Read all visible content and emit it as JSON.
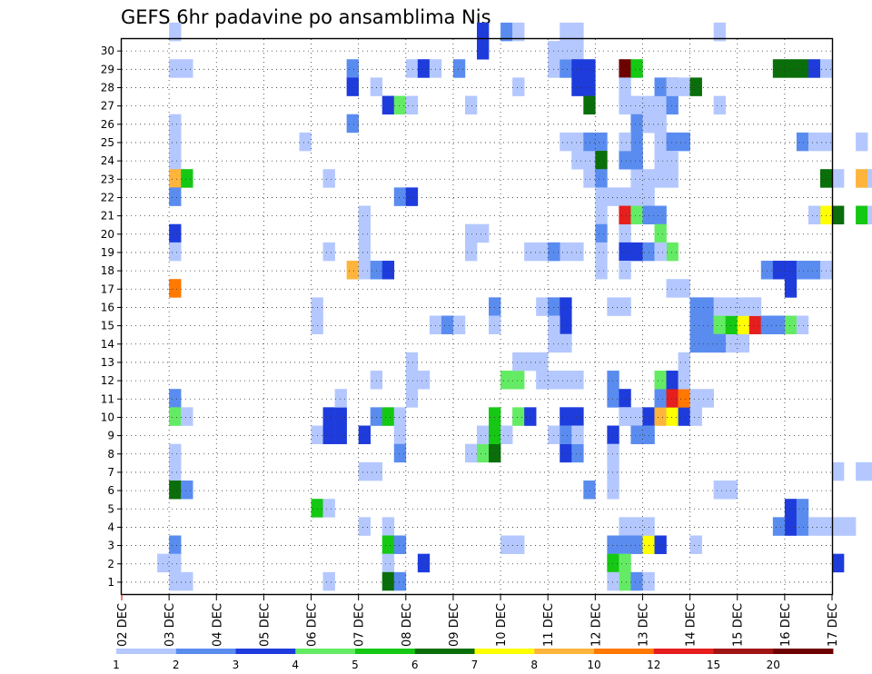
{
  "chart_data": {
    "type": "heatmap",
    "title": "GEFS 6hr padavine po ansamblima Nis",
    "xlabel": "",
    "ylabel": "",
    "members": [
      1,
      2,
      3,
      4,
      5,
      6,
      7,
      8,
      9,
      10,
      11,
      12,
      13,
      14,
      15,
      16,
      17,
      18,
      19,
      20,
      21,
      22,
      23,
      24,
      25,
      26,
      27,
      28,
      29,
      30
    ],
    "x_tick_labels": [
      "02 DEC",
      "03 DEC",
      "04 DEC",
      "05 DEC",
      "06 DEC",
      "07 DEC",
      "08 DEC",
      "09 DEC",
      "10 DEC",
      "11 DEC",
      "12 DEC",
      "13 DEC",
      "14 DEC",
      "15 DEC",
      "16 DEC",
      "17 DEC"
    ],
    "time_step_hours": 6,
    "grid": true,
    "colorbar": {
      "position": "bottom",
      "tick_labels": [
        "1",
        "2",
        "3",
        "4",
        "5",
        "6",
        "7",
        "8",
        "10",
        "12",
        "15",
        "20"
      ],
      "colors": [
        "#b4c8ff",
        "#5a8cf0",
        "#1e3cdc",
        "#64eb64",
        "#14c814",
        "#0a6e0a",
        "#ffff00",
        "#ffb43c",
        "#ff7800",
        "#e61e1e",
        "#a01414",
        "#6e0000"
      ]
    },
    "cells": [
      [
        4,
        30,
        0
      ],
      [
        4,
        28,
        0
      ],
      [
        5,
        28,
        0
      ],
      [
        4,
        25,
        0
      ],
      [
        4,
        24,
        0
      ],
      [
        4,
        23,
        0
      ],
      [
        4,
        22,
        7
      ],
      [
        5,
        22,
        4
      ],
      [
        4,
        21,
        1
      ],
      [
        4,
        19,
        2
      ],
      [
        4,
        18,
        0
      ],
      [
        4,
        16,
        8
      ],
      [
        4,
        10,
        1
      ],
      [
        4,
        9,
        3
      ],
      [
        5,
        9,
        0
      ],
      [
        4,
        7,
        0
      ],
      [
        4,
        6,
        0
      ],
      [
        4,
        5,
        5
      ],
      [
        5,
        5,
        1
      ],
      [
        4,
        2,
        1
      ],
      [
        3,
        1,
        0
      ],
      [
        4,
        1,
        0
      ],
      [
        4,
        0,
        0
      ],
      [
        5,
        0,
        0
      ],
      [
        15,
        24,
        0
      ],
      [
        16,
        15,
        0
      ],
      [
        16,
        14,
        0
      ],
      [
        16,
        8,
        0
      ],
      [
        17,
        8,
        2
      ],
      [
        16,
        4,
        4
      ],
      [
        17,
        4,
        0
      ],
      [
        17,
        0,
        0
      ],
      [
        17,
        9,
        2
      ],
      [
        17,
        18,
        0
      ],
      [
        17,
        22,
        0
      ],
      [
        18,
        9,
        2
      ],
      [
        18,
        10,
        0
      ],
      [
        18,
        8,
        2
      ],
      [
        19,
        28,
        1
      ],
      [
        19,
        27,
        2
      ],
      [
        19,
        25,
        1
      ],
      [
        19,
        17,
        7
      ],
      [
        20,
        20,
        0
      ],
      [
        20,
        19,
        0
      ],
      [
        20,
        18,
        0
      ],
      [
        20,
        17,
        0
      ],
      [
        21,
        17,
        1
      ],
      [
        22,
        17,
        2
      ],
      [
        20,
        6,
        0
      ],
      [
        21,
        6,
        0
      ],
      [
        20,
        3,
        0
      ],
      [
        20,
        8,
        2
      ],
      [
        21,
        27,
        0
      ],
      [
        21,
        11,
        0
      ],
      [
        21,
        9,
        1
      ],
      [
        22,
        9,
        4
      ],
      [
        23,
        9,
        0
      ],
      [
        22,
        26,
        2
      ],
      [
        23,
        26,
        3
      ],
      [
        24,
        26,
        0
      ],
      [
        22,
        3,
        0
      ],
      [
        22,
        2,
        4
      ],
      [
        23,
        2,
        1
      ],
      [
        22,
        1,
        0
      ],
      [
        22,
        0,
        5
      ],
      [
        23,
        0,
        1
      ],
      [
        23,
        21,
        1
      ],
      [
        24,
        21,
        2
      ],
      [
        23,
        8,
        0
      ],
      [
        23,
        7,
        1
      ],
      [
        24,
        28,
        0
      ],
      [
        25,
        28,
        2
      ],
      [
        26,
        28,
        0
      ],
      [
        24,
        11,
        0
      ],
      [
        24,
        10,
        0
      ],
      [
        25,
        11,
        0
      ],
      [
        24,
        12,
        0
      ],
      [
        25,
        1,
        2
      ],
      [
        26,
        14,
        0
      ],
      [
        27,
        14,
        1
      ],
      [
        28,
        14,
        0
      ],
      [
        28,
        28,
        1
      ],
      [
        29,
        26,
        0
      ],
      [
        29,
        19,
        0
      ],
      [
        30,
        19,
        0
      ],
      [
        29,
        18,
        0
      ],
      [
        29,
        7,
        0
      ],
      [
        30,
        7,
        3
      ],
      [
        31,
        7,
        5
      ],
      [
        30,
        8,
        0
      ],
      [
        31,
        8,
        4
      ],
      [
        31,
        9,
        4
      ],
      [
        32,
        8,
        0
      ],
      [
        30,
        30,
        2
      ],
      [
        30,
        29,
        2
      ],
      [
        31,
        15,
        1
      ],
      [
        31,
        14,
        0
      ],
      [
        32,
        11,
        3
      ],
      [
        33,
        11,
        3
      ],
      [
        32,
        2,
        0
      ],
      [
        33,
        2,
        0
      ],
      [
        32,
        30,
        1
      ],
      [
        33,
        30,
        0
      ],
      [
        33,
        27,
        0
      ],
      [
        33,
        9,
        3
      ],
      [
        34,
        9,
        2
      ],
      [
        34,
        18,
        0
      ],
      [
        35,
        18,
        0
      ],
      [
        36,
        18,
        0
      ],
      [
        37,
        18,
        0
      ],
      [
        38,
        18,
        0
      ],
      [
        35,
        15,
        0
      ],
      [
        36,
        15,
        1
      ],
      [
        37,
        15,
        2
      ],
      [
        37,
        14,
        2
      ],
      [
        36,
        14,
        0
      ],
      [
        36,
        13,
        0
      ],
      [
        37,
        13,
        0
      ],
      [
        33,
        12,
        0
      ],
      [
        34,
        12,
        0
      ],
      [
        35,
        12,
        0
      ],
      [
        35,
        11,
        0
      ],
      [
        36,
        11,
        0
      ],
      [
        37,
        11,
        0
      ],
      [
        38,
        11,
        0
      ],
      [
        36,
        18,
        1
      ],
      [
        36,
        8,
        0
      ],
      [
        37,
        8,
        0
      ],
      [
        38,
        8,
        0
      ],
      [
        37,
        9,
        0
      ],
      [
        38,
        9,
        0
      ],
      [
        36,
        28,
        0
      ],
      [
        37,
        28,
        1
      ],
      [
        37,
        9,
        2
      ],
      [
        38,
        9,
        2
      ],
      [
        37,
        7,
        2
      ],
      [
        37,
        8,
        1
      ],
      [
        38,
        7,
        1
      ],
      [
        38,
        8,
        0
      ],
      [
        37,
        30,
        0
      ],
      [
        38,
        30,
        0
      ],
      [
        36,
        29,
        0
      ],
      [
        37,
        29,
        0
      ],
      [
        38,
        29,
        0
      ],
      [
        38,
        28,
        2
      ],
      [
        39,
        28,
        2
      ],
      [
        38,
        27,
        2
      ],
      [
        39,
        27,
        2
      ],
      [
        39,
        26,
        5
      ],
      [
        37,
        24,
        0
      ],
      [
        38,
        24,
        0
      ],
      [
        38,
        23,
        0
      ],
      [
        39,
        23,
        0
      ],
      [
        39,
        24,
        1
      ],
      [
        40,
        24,
        1
      ],
      [
        40,
        23,
        5
      ],
      [
        39,
        22,
        0
      ],
      [
        40,
        22,
        1
      ],
      [
        40,
        21,
        0
      ],
      [
        40,
        20,
        0
      ],
      [
        40,
        19,
        1
      ],
      [
        40,
        18,
        0
      ],
      [
        40,
        17,
        0
      ],
      [
        39,
        5,
        1
      ],
      [
        41,
        11,
        1
      ],
      [
        41,
        10,
        1
      ],
      [
        42,
        10,
        2
      ],
      [
        42,
        9,
        0
      ],
      [
        41,
        8,
        2
      ],
      [
        41,
        7,
        0
      ],
      [
        41,
        6,
        0
      ],
      [
        41,
        5,
        0
      ],
      [
        41,
        2,
        1
      ],
      [
        41,
        1,
        0
      ],
      [
        42,
        28,
        11
      ],
      [
        43,
        28,
        4
      ],
      [
        42,
        27,
        0
      ],
      [
        42,
        26,
        0
      ],
      [
        43,
        26,
        0
      ],
      [
        43,
        23,
        1
      ],
      [
        42,
        23,
        1
      ],
      [
        43,
        22,
        0
      ],
      [
        44,
        22,
        0
      ],
      [
        44,
        21,
        0
      ],
      [
        43,
        21,
        0
      ],
      [
        42,
        21,
        0
      ],
      [
        42,
        20,
        0
      ],
      [
        42,
        19,
        0
      ],
      [
        43,
        20,
        0
      ],
      [
        43,
        25,
        1
      ],
      [
        44,
        25,
        1
      ],
      [
        43,
        24,
        1
      ],
      [
        41,
        21,
        0
      ],
      [
        42,
        24,
        0
      ],
      [
        43,
        23,
        1
      ],
      [
        42,
        20,
        9
      ],
      [
        43,
        20,
        3
      ],
      [
        44,
        20,
        1
      ],
      [
        45,
        20,
        1
      ],
      [
        42,
        18,
        2
      ],
      [
        43,
        18,
        2
      ],
      [
        44,
        18,
        1
      ],
      [
        42,
        17,
        0
      ],
      [
        41,
        15,
        0
      ],
      [
        42,
        15,
        0
      ],
      [
        42,
        9,
        0
      ],
      [
        43,
        9,
        0
      ],
      [
        44,
        9,
        2
      ],
      [
        43,
        8,
        1
      ],
      [
        44,
        8,
        1
      ],
      [
        42,
        3,
        0
      ],
      [
        43,
        3,
        0
      ],
      [
        42,
        2,
        1
      ],
      [
        43,
        2,
        1
      ],
      [
        41,
        1,
        4
      ],
      [
        42,
        1,
        3
      ],
      [
        42,
        0,
        3
      ],
      [
        43,
        0,
        1
      ],
      [
        41,
        0,
        0
      ],
      [
        44,
        0,
        0
      ],
      [
        44,
        2,
        6
      ],
      [
        45,
        2,
        2
      ],
      [
        44,
        3,
        0
      ],
      [
        45,
        9,
        7
      ],
      [
        46,
        9,
        6
      ],
      [
        47,
        9,
        2
      ],
      [
        48,
        9,
        0
      ],
      [
        45,
        10,
        1
      ],
      [
        46,
        10,
        9
      ],
      [
        47,
        10,
        8
      ],
      [
        48,
        10,
        0
      ],
      [
        49,
        10,
        0
      ],
      [
        45,
        11,
        3
      ],
      [
        46,
        11,
        2
      ],
      [
        47,
        11,
        0
      ],
      [
        44,
        25,
        0
      ],
      [
        45,
        25,
        0
      ],
      [
        44,
        26,
        0
      ],
      [
        45,
        26,
        0
      ],
      [
        45,
        27,
        1
      ],
      [
        46,
        27,
        2
      ],
      [
        45,
        24,
        0
      ],
      [
        46,
        24,
        1
      ],
      [
        47,
        24,
        1
      ],
      [
        45,
        22,
        0
      ],
      [
        46,
        22,
        0
      ],
      [
        45,
        23,
        0
      ],
      [
        46,
        23,
        0
      ],
      [
        46,
        26,
        1
      ],
      [
        46,
        27,
        0
      ],
      [
        47,
        27,
        0
      ],
      [
        48,
        27,
        5
      ],
      [
        45,
        19,
        3
      ],
      [
        46,
        18,
        3
      ],
      [
        45,
        18,
        0
      ],
      [
        46,
        16,
        0
      ],
      [
        47,
        16,
        0
      ],
      [
        47,
        12,
        0
      ],
      [
        48,
        15,
        1
      ],
      [
        49,
        15,
        1
      ],
      [
        50,
        15,
        0
      ],
      [
        48,
        14,
        1
      ],
      [
        49,
        14,
        1
      ],
      [
        49,
        13,
        1
      ],
      [
        48,
        13,
        1
      ],
      [
        50,
        14,
        0
      ],
      [
        51,
        14,
        0
      ],
      [
        51,
        13,
        0
      ],
      [
        52,
        13,
        0
      ],
      [
        50,
        14,
        3
      ],
      [
        51,
        14,
        4
      ],
      [
        52,
        14,
        6
      ],
      [
        53,
        14,
        9
      ],
      [
        54,
        14,
        1
      ],
      [
        55,
        14,
        1
      ],
      [
        56,
        14,
        3
      ],
      [
        57,
        14,
        0
      ],
      [
        50,
        13,
        1
      ],
      [
        51,
        15,
        0
      ],
      [
        52,
        15,
        0
      ],
      [
        53,
        15,
        0
      ],
      [
        48,
        2,
        0
      ],
      [
        50,
        26,
        0
      ],
      [
        50,
        30,
        0
      ],
      [
        50,
        5,
        0
      ],
      [
        51,
        5,
        0
      ],
      [
        53,
        15,
        0
      ],
      [
        54,
        17,
        1
      ],
      [
        55,
        17,
        2
      ],
      [
        56,
        17,
        2
      ],
      [
        57,
        17,
        1
      ],
      [
        58,
        17,
        1
      ],
      [
        59,
        17,
        0
      ],
      [
        56,
        16,
        2
      ],
      [
        54,
        14,
        1
      ],
      [
        55,
        14,
        1
      ],
      [
        55,
        28,
        5
      ],
      [
        56,
        28,
        5
      ],
      [
        57,
        28,
        5
      ],
      [
        58,
        28,
        2
      ],
      [
        59,
        28,
        0
      ],
      [
        57,
        24,
        1
      ],
      [
        58,
        24,
        0
      ],
      [
        59,
        24,
        0
      ],
      [
        59,
        22,
        5
      ],
      [
        60,
        22,
        0
      ],
      [
        62,
        22,
        7
      ],
      [
        63,
        22,
        0
      ],
      [
        59,
        20,
        6
      ],
      [
        60,
        20,
        5
      ],
      [
        62,
        20,
        4
      ],
      [
        63,
        20,
        0
      ],
      [
        58,
        20,
        0
      ],
      [
        56,
        4,
        2
      ],
      [
        57,
        4,
        1
      ],
      [
        56,
        3,
        2
      ],
      [
        57,
        3,
        1
      ],
      [
        55,
        3,
        1
      ],
      [
        58,
        3,
        0
      ],
      [
        59,
        3,
        0
      ],
      [
        60,
        3,
        0
      ],
      [
        61,
        3,
        0
      ],
      [
        60,
        6,
        0
      ],
      [
        62,
        6,
        0
      ],
      [
        63,
        6,
        0
      ],
      [
        62,
        24,
        0
      ],
      [
        60,
        1,
        2
      ]
    ]
  }
}
